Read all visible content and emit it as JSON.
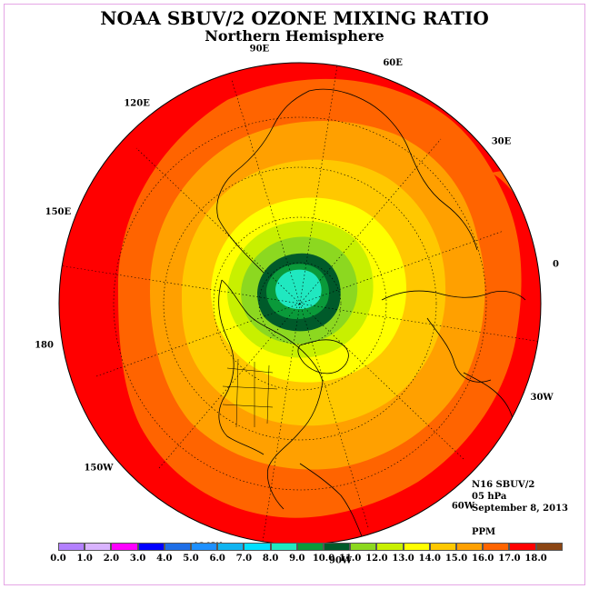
{
  "title": "NOAA SBUV/2 OZONE MIXING RATIO",
  "subtitle": "Northern Hemisphere",
  "longitude_labels": [
    {
      "text": "90E",
      "lon": 90
    },
    {
      "text": "60E",
      "lon": 60
    },
    {
      "text": "30E",
      "lon": 30
    },
    {
      "text": "0",
      "lon": 0
    },
    {
      "text": "30W",
      "lon": -30
    },
    {
      "text": "60W",
      "lon": -60
    },
    {
      "text": "90W",
      "lon": -90
    },
    {
      "text": "120W",
      "lon": -120
    },
    {
      "text": "150W",
      "lon": -150
    },
    {
      "text": "180",
      "lon": 180
    },
    {
      "text": "150E",
      "lon": 150
    },
    {
      "text": "120E",
      "lon": 120
    }
  ],
  "meta": {
    "satellite": "N16 SBUV/2",
    "level": "05 hPa",
    "date": "September 8, 2013",
    "units": "PPM"
  },
  "colorbar": {
    "ticks": [
      "0.0",
      "1.0",
      "2.0",
      "3.0",
      "4.0",
      "5.0",
      "6.0",
      "7.0",
      "8.0",
      "9.0",
      "10.0",
      "11.0",
      "12.0",
      "13.0",
      "14.0",
      "15.0",
      "16.0",
      "17.0",
      "18.0"
    ],
    "colors": [
      "#b380ff",
      "#d9b3ff",
      "#ff00ff",
      "#0000ff",
      "#1e6ee6",
      "#1e90ff",
      "#10b4f0",
      "#00e0ff",
      "#20e8c0",
      "#0a9a3a",
      "#005a2a",
      "#8cd820",
      "#c8f000",
      "#ffff00",
      "#ffc800",
      "#ffa000",
      "#ff6400",
      "#ff0000",
      "#8b4513"
    ]
  },
  "map_fields": {
    "projection": "north polar stereographic",
    "contour_bands_ppm": [
      {
        "min": 17.0,
        "max": 18.0,
        "color": "#ff0000"
      },
      {
        "min": 16.0,
        "max": 17.0,
        "color": "#ff6400"
      },
      {
        "min": 15.0,
        "max": 16.0,
        "color": "#ffa000"
      },
      {
        "min": 14.0,
        "max": 15.0,
        "color": "#ffc800"
      },
      {
        "min": 13.0,
        "max": 14.0,
        "color": "#ffff00"
      },
      {
        "min": 12.0,
        "max": 13.0,
        "color": "#c8f000"
      },
      {
        "min": 11.0,
        "max": 12.0,
        "color": "#8cd820"
      },
      {
        "min": 10.0,
        "max": 11.0,
        "color": "#005a2a"
      },
      {
        "min": 9.0,
        "max": 10.0,
        "color": "#0a9a3a"
      },
      {
        "min": 8.0,
        "max": 9.0,
        "color": "#20e8c0"
      }
    ],
    "coastline_color": "#000000",
    "grid_color": "#000000"
  }
}
